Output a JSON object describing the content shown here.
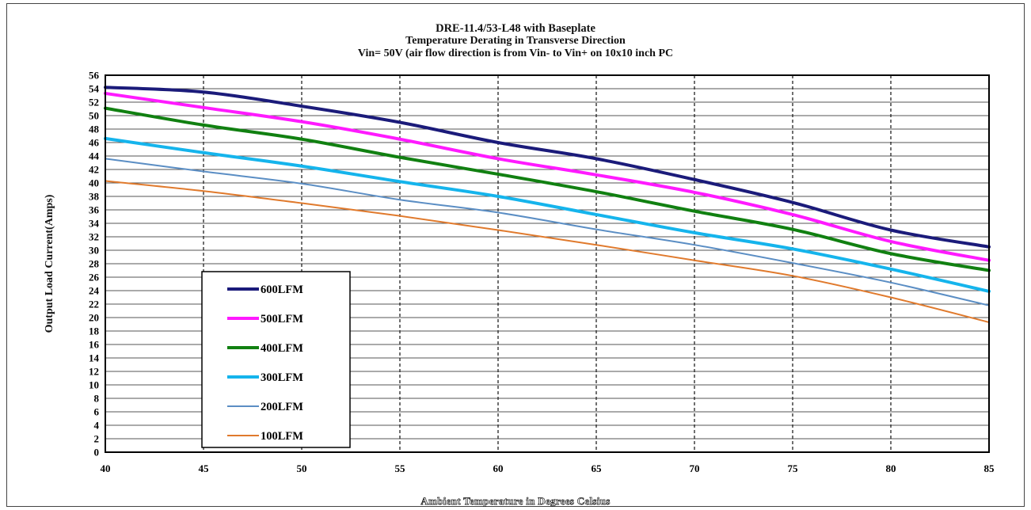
{
  "chart_data": {
    "type": "line",
    "title": "DRE-11.4/53-L48  with  Baseplate",
    "subtitle_1": "Temperature Derating in Transverse Direction",
    "subtitle_2": "Vin= 50V (air flow direction is from Vin- to Vin+ on 10x10 inch PC",
    "xlabel": "Ambient Temperature in Degrees Celsius",
    "ylabel": "Output  Load Current(Amps)",
    "xlim": [
      40,
      85
    ],
    "ylim": [
      0,
      56
    ],
    "x_ticks": [
      40,
      45,
      50,
      55,
      60,
      65,
      70,
      75,
      80,
      85
    ],
    "y_ticks": [
      0,
      2,
      4,
      6,
      8,
      10,
      12,
      14,
      16,
      18,
      20,
      22,
      24,
      26,
      28,
      30,
      32,
      34,
      36,
      38,
      40,
      42,
      44,
      46,
      48,
      50,
      52,
      54,
      56
    ],
    "grid": {
      "x": "dashed",
      "y": "solid"
    },
    "legend_position": "bottom-left",
    "x": [
      40,
      45,
      50,
      55,
      60,
      65,
      70,
      75,
      80,
      85
    ],
    "series": [
      {
        "name": "600LFM",
        "color": "#1b1b7a",
        "width": 4,
        "values": [
          54.2,
          53.5,
          51.4,
          49.0,
          46.0,
          43.6,
          40.5,
          37.1,
          33.0,
          30.5
        ]
      },
      {
        "name": "500LFM",
        "color": "#ff1aff",
        "width": 4,
        "values": [
          53.3,
          51.2,
          49.1,
          46.5,
          43.6,
          41.2,
          38.6,
          35.3,
          31.3,
          28.5
        ]
      },
      {
        "name": "400LFM",
        "color": "#118011",
        "width": 4,
        "values": [
          51.1,
          48.6,
          46.5,
          43.8,
          41.3,
          38.7,
          35.8,
          33.1,
          29.5,
          27.0
        ]
      },
      {
        "name": "300LFM",
        "color": "#15b4ec",
        "width": 4,
        "values": [
          46.6,
          44.5,
          42.5,
          40.2,
          38.0,
          35.3,
          32.6,
          30.2,
          27.2,
          23.9
        ]
      },
      {
        "name": "200LFM",
        "color": "#5b8ec4",
        "width": 2,
        "values": [
          43.6,
          41.7,
          39.9,
          37.5,
          35.6,
          33.1,
          30.8,
          28.1,
          25.2,
          21.8
        ]
      },
      {
        "name": "100LFM",
        "color": "#e07a2d",
        "width": 2,
        "values": [
          40.3,
          38.8,
          37.0,
          35.1,
          33.0,
          30.8,
          28.5,
          26.2,
          23.0,
          19.3
        ]
      }
    ]
  }
}
